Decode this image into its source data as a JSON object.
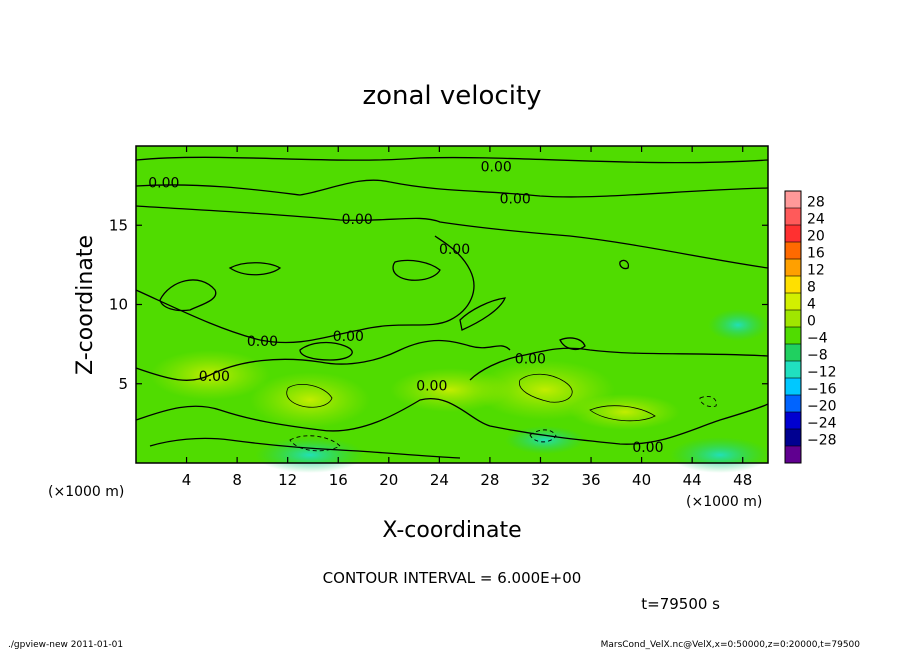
{
  "chart_data": {
    "type": "heatmap",
    "title": "zonal velocity",
    "xlabel": "X-coordinate",
    "ylabel": "Z-coordinate",
    "x_unit_left": "(×1000 m)",
    "x_unit_right": "(×1000 m)",
    "xlim": [
      0,
      50
    ],
    "ylim": [
      0,
      20
    ],
    "x_ticks": [
      4,
      8,
      12,
      16,
      20,
      24,
      28,
      32,
      36,
      40,
      44,
      48
    ],
    "x_tick_labels": [
      "4",
      "8",
      "12",
      "16",
      "20",
      "24",
      "28",
      "32",
      "36",
      "40",
      "44",
      "48"
    ],
    "y_ticks": [
      5,
      10,
      15
    ],
    "y_tick_labels": [
      "5",
      "10",
      "15"
    ],
    "colorbar": {
      "levels": [
        28,
        24,
        20,
        16,
        12,
        8,
        4,
        0,
        -4,
        -8,
        -12,
        -16,
        -20,
        -24,
        -28
      ],
      "labels": [
        "28",
        "24",
        "20",
        "16",
        "12",
        "8",
        "4",
        "0",
        "−4",
        "−8",
        "−12",
        "−16",
        "−20",
        "−24",
        "−28"
      ],
      "colors": [
        "#ff9999",
        "#ff5a5a",
        "#ff3030",
        "#ff6a00",
        "#ffa000",
        "#ffe000",
        "#d2f000",
        "#a0e600",
        "#50dc00",
        "#20d060",
        "#20e0c0",
        "#00c8ff",
        "#0064ff",
        "#0000d0",
        "#000090",
        "#600090"
      ]
    },
    "contour_labels": [
      {
        "text": "0.00",
        "x": 2.2,
        "y": 17.7
      },
      {
        "text": "0.00",
        "x": 28.5,
        "y": 18.7
      },
      {
        "text": "0.00",
        "x": 30.0,
        "y": 16.7
      },
      {
        "text": "0.00",
        "x": 17.5,
        "y": 15.4
      },
      {
        "text": "0.00",
        "x": 25.2,
        "y": 13.5
      },
      {
        "text": "0.00",
        "x": 10.0,
        "y": 7.7
      },
      {
        "text": "0.00",
        "x": 16.8,
        "y": 8.0
      },
      {
        "text": "0.00",
        "x": 6.2,
        "y": 5.5
      },
      {
        "text": "0.00",
        "x": 23.4,
        "y": 4.9
      },
      {
        "text": "0.00",
        "x": 31.2,
        "y": 6.6
      },
      {
        "text": "0.00",
        "x": 40.5,
        "y": 1.0
      }
    ],
    "contour_interval": "CONTOUR INTERVAL = 6.000E+00",
    "time_label": "t=79500 s"
  },
  "footer": {
    "left": "./gpview-new   2011-01-01",
    "right": "MarsCond_VelX.nc@VelX,x=0:50000,z=0:20000,t=79500"
  }
}
